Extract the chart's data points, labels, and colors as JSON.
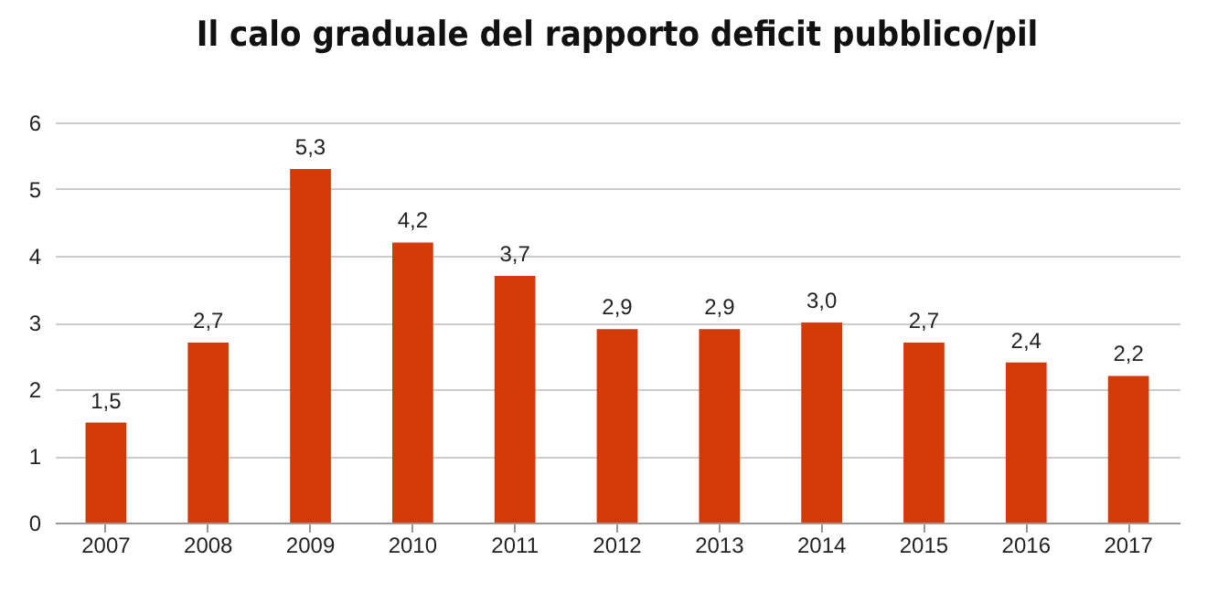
{
  "chart_data": {
    "type": "bar",
    "title": "Il calo graduale del rapporto deficit pubblico/pil",
    "categories": [
      "2007",
      "2008",
      "2009",
      "2010",
      "2011",
      "2012",
      "2013",
      "2014",
      "2015",
      "2016",
      "2017"
    ],
    "values": [
      1.5,
      2.7,
      5.3,
      4.2,
      3.7,
      2.9,
      2.9,
      3.0,
      2.7,
      2.4,
      2.2
    ],
    "value_labels": [
      "1,5",
      "2,7",
      "5,3",
      "4,2",
      "3,7",
      "2,9",
      "2,9",
      "3,0",
      "2,7",
      "2,4",
      "2,2"
    ],
    "color": "#d43a08",
    "ylim": [
      0,
      6
    ],
    "yticks": [
      0,
      1,
      2,
      3,
      4,
      5,
      6
    ],
    "grid": "y"
  }
}
